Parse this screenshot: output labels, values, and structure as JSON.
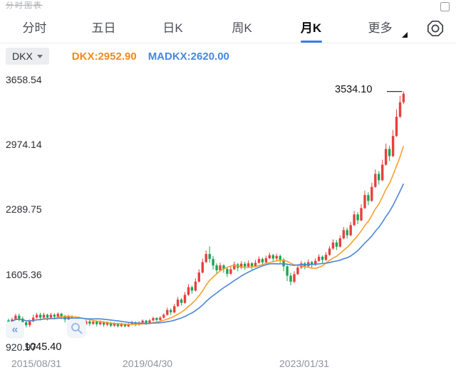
{
  "watermark": "分时图表",
  "header": {
    "tabs": [
      {
        "label": "分时"
      },
      {
        "label": "五日"
      },
      {
        "label": "日K"
      },
      {
        "label": "周K"
      },
      {
        "label": "月K"
      },
      {
        "label": "更多"
      }
    ],
    "active_tab": "月K",
    "accent_color": "#3a7bf0"
  },
  "legend": {
    "selector": "DKX",
    "dkx": "DKX:2952.90",
    "madkx": "MADKX:2620.00",
    "dkx_color": "#ef8b1a",
    "madkx_color": "#4a86d8"
  },
  "controls": {
    "collapse_icon": "«"
  },
  "chart_data": {
    "type": "candlestick",
    "title": "",
    "xlabel": "",
    "ylabel": "",
    "grid": false,
    "ylim": [
      920.97,
      3658.54
    ],
    "y_axis_labels": [
      "3658.54",
      "2974.14",
      "2289.75",
      "1605.36",
      "920.97"
    ],
    "x_axis_labels": [
      "2015/08/31",
      "2019/04/30",
      "2023/01/31"
    ],
    "x_label_indices": [
      0,
      44,
      89
    ],
    "up_color": "#e8403e",
    "down_color": "#1ba554",
    "high_annotation": {
      "label": "3534.10",
      "value": 3534.1,
      "index": 112
    },
    "low_annotation": {
      "label": "1045.40",
      "value": 1045.4,
      "index": 5
    },
    "overlays": [
      {
        "name": "DKX",
        "period": 10,
        "color": "#f5a02c",
        "last_value": 2952.9
      },
      {
        "name": "MADKX",
        "period": 20,
        "color": "#4a86d8",
        "last_value": 2620.0
      }
    ],
    "candles": [
      [
        1120,
        1090,
        1070,
        1140
      ],
      [
        1090,
        1130,
        1080,
        1150
      ],
      [
        1130,
        1170,
        1120,
        1190
      ],
      [
        1170,
        1140,
        1110,
        1190
      ],
      [
        1140,
        1100,
        1060,
        1160
      ],
      [
        1100,
        1070,
        1045.4,
        1120
      ],
      [
        1070,
        1110,
        1050,
        1130
      ],
      [
        1110,
        1150,
        1100,
        1180
      ],
      [
        1150,
        1180,
        1140,
        1200
      ],
      [
        1180,
        1150,
        1120,
        1200
      ],
      [
        1150,
        1180,
        1130,
        1200
      ],
      [
        1180,
        1150,
        1120,
        1190
      ],
      [
        1150,
        1180,
        1140,
        1200
      ],
      [
        1180,
        1160,
        1130,
        1195
      ],
      [
        1160,
        1190,
        1150,
        1205
      ],
      [
        1190,
        1160,
        1135,
        1200
      ],
      [
        1160,
        1130,
        1100,
        1180
      ],
      [
        1130,
        1160,
        1120,
        1180
      ],
      [
        1160,
        1120,
        1095,
        1175
      ],
      [
        1120,
        1145,
        1105,
        1165
      ],
      [
        1145,
        1110,
        1085,
        1160
      ],
      [
        1110,
        1080,
        1060,
        1130
      ],
      [
        1080,
        1110,
        1070,
        1130
      ],
      [
        1110,
        1085,
        1062,
        1125
      ],
      [
        1085,
        1108,
        1072,
        1125
      ],
      [
        1108,
        1080,
        1058,
        1118
      ],
      [
        1080,
        1102,
        1068,
        1120
      ],
      [
        1102,
        1075,
        1052,
        1112
      ],
      [
        1075,
        1095,
        1060,
        1110
      ],
      [
        1095,
        1065,
        1048,
        1105
      ],
      [
        1065,
        1085,
        1052,
        1100
      ],
      [
        1085,
        1060,
        1046,
        1095
      ],
      [
        1060,
        1080,
        1050,
        1095
      ],
      [
        1080,
        1058,
        1047,
        1090
      ],
      [
        1058,
        1078,
        1050,
        1092
      ],
      [
        1078,
        1100,
        1070,
        1115
      ],
      [
        1100,
        1078,
        1058,
        1110
      ],
      [
        1078,
        1098,
        1065,
        1112
      ],
      [
        1098,
        1118,
        1088,
        1132
      ],
      [
        1118,
        1095,
        1072,
        1125
      ],
      [
        1095,
        1120,
        1085,
        1135
      ],
      [
        1120,
        1145,
        1110,
        1160
      ],
      [
        1145,
        1125,
        1100,
        1155
      ],
      [
        1125,
        1150,
        1115,
        1165
      ],
      [
        1150,
        1180,
        1140,
        1195
      ],
      [
        1180,
        1230,
        1170,
        1255
      ],
      [
        1230,
        1205,
        1178,
        1248
      ],
      [
        1205,
        1270,
        1195,
        1295
      ],
      [
        1270,
        1340,
        1260,
        1368
      ],
      [
        1340,
        1305,
        1278,
        1355
      ],
      [
        1305,
        1390,
        1295,
        1420
      ],
      [
        1390,
        1470,
        1380,
        1502
      ],
      [
        1470,
        1435,
        1402,
        1488
      ],
      [
        1435,
        1530,
        1425,
        1562
      ],
      [
        1530,
        1625,
        1520,
        1660
      ],
      [
        1625,
        1735,
        1615,
        1772
      ],
      [
        1735,
        1820,
        1725,
        1858
      ],
      [
        1820,
        1768,
        1730,
        1902
      ],
      [
        1768,
        1700,
        1655,
        1800
      ],
      [
        1700,
        1648,
        1605,
        1722
      ],
      [
        1648,
        1700,
        1635,
        1728
      ],
      [
        1700,
        1662,
        1622,
        1712
      ],
      [
        1662,
        1612,
        1578,
        1682
      ],
      [
        1612,
        1660,
        1600,
        1688
      ],
      [
        1660,
        1712,
        1650,
        1740
      ],
      [
        1712,
        1675,
        1638,
        1725
      ],
      [
        1675,
        1718,
        1662,
        1745
      ],
      [
        1718,
        1688,
        1652,
        1738
      ],
      [
        1688,
        1722,
        1672,
        1752
      ],
      [
        1722,
        1692,
        1658,
        1735
      ],
      [
        1692,
        1728,
        1680,
        1758
      ],
      [
        1728,
        1768,
        1718,
        1795
      ],
      [
        1768,
        1732,
        1700,
        1782
      ],
      [
        1732,
        1775,
        1722,
        1802
      ],
      [
        1775,
        1808,
        1765,
        1835
      ],
      [
        1808,
        1772,
        1738,
        1822
      ],
      [
        1772,
        1800,
        1755,
        1825
      ],
      [
        1800,
        1762,
        1722,
        1815
      ],
      [
        1762,
        1690,
        1640,
        1778
      ],
      [
        1690,
        1592,
        1535,
        1705
      ],
      [
        1592,
        1528,
        1492,
        1622
      ],
      [
        1528,
        1608,
        1512,
        1638
      ],
      [
        1608,
        1678,
        1598,
        1708
      ],
      [
        1678,
        1722,
        1662,
        1748
      ],
      [
        1722,
        1692,
        1660,
        1738
      ],
      [
        1692,
        1735,
        1682,
        1762
      ],
      [
        1735,
        1705,
        1672,
        1748
      ],
      [
        1705,
        1748,
        1695,
        1775
      ],
      [
        1748,
        1792,
        1738,
        1818
      ],
      [
        1792,
        1758,
        1722,
        1805
      ],
      [
        1758,
        1812,
        1748,
        1840
      ],
      [
        1812,
        1878,
        1800,
        1905
      ],
      [
        1878,
        1942,
        1865,
        1975
      ],
      [
        1942,
        1898,
        1862,
        1968
      ],
      [
        1898,
        1985,
        1888,
        2015
      ],
      [
        1985,
        2072,
        1975,
        2105
      ],
      [
        2072,
        2018,
        1982,
        2098
      ],
      [
        2018,
        2125,
        2008,
        2158
      ],
      [
        2125,
        2238,
        2115,
        2275
      ],
      [
        2238,
        2175,
        2135,
        2262
      ],
      [
        2175,
        2305,
        2165,
        2345
      ],
      [
        2305,
        2442,
        2295,
        2488
      ],
      [
        2442,
        2380,
        2335,
        2472
      ],
      [
        2380,
        2528,
        2370,
        2572
      ],
      [
        2528,
        2665,
        2518,
        2712
      ],
      [
        2665,
        2598,
        2552,
        2695
      ],
      [
        2598,
        2762,
        2588,
        2815
      ],
      [
        2762,
        2928,
        2752,
        2985
      ],
      [
        2928,
        2852,
        2802,
        2962
      ],
      [
        2852,
        3065,
        2842,
        3128
      ],
      [
        3065,
        3268,
        3055,
        3345
      ],
      [
        3268,
        3420,
        3255,
        3488
      ],
      [
        3420,
        3510,
        3400,
        3534.1
      ]
    ]
  }
}
